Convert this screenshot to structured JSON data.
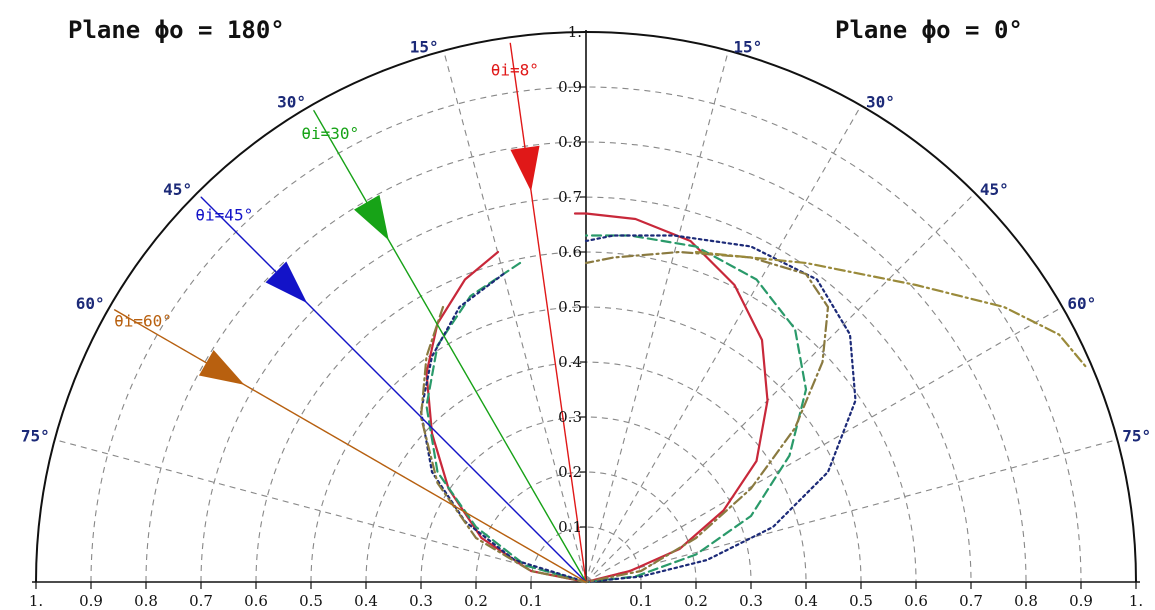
{
  "chart_data": {
    "type": "polar",
    "plane_labels": {
      "left": "Plane ϕo = 180°",
      "right": "Plane ϕo = 0°"
    },
    "radial_ticks": [
      0.1,
      0.2,
      0.3,
      0.4,
      0.5,
      0.6,
      0.7,
      0.8,
      0.9,
      1.0
    ],
    "radial_tick_labels": [
      "0.1",
      "0.2",
      "0.3",
      "0.4",
      "0.5",
      "0.6",
      "0.7",
      "0.8",
      "0.9",
      "1."
    ],
    "rlim": [
      0,
      1
    ],
    "angle_ticks": [
      15,
      30,
      45,
      60,
      75
    ],
    "angle_labels": [
      "15°",
      "30°",
      "45°",
      "60°",
      "75°"
    ],
    "grid": true,
    "incidence_arrows": [
      {
        "label": "θi=8°",
        "angle_deg": 8,
        "color": "#e01818"
      },
      {
        "label": "θi=30°",
        "angle_deg": 30,
        "color": "#17a317"
      },
      {
        "label": "θi=45°",
        "angle_deg": 45,
        "color": "#1313c8"
      },
      {
        "label": "θi=60°",
        "angle_deg": 60,
        "color": "#b8600f"
      }
    ],
    "series": [
      {
        "color": "#c8283a",
        "style": "solid",
        "points": [
          [
            -0.16,
            0.6
          ],
          [
            -0.22,
            0.55
          ],
          [
            -0.27,
            0.47
          ],
          [
            -0.29,
            0.38
          ],
          [
            -0.28,
            0.27
          ],
          [
            -0.25,
            0.17
          ],
          [
            -0.19,
            0.08
          ],
          [
            -0.1,
            0.02
          ],
          [
            0,
            0
          ],
          [
            0.08,
            0.02
          ],
          [
            0.17,
            0.06
          ],
          [
            0.25,
            0.13
          ],
          [
            0.31,
            0.22
          ],
          [
            0.33,
            0.33
          ],
          [
            0.32,
            0.44
          ],
          [
            0.27,
            0.54
          ],
          [
            0.19,
            0.62
          ],
          [
            0.09,
            0.66
          ],
          [
            0,
            0.67
          ],
          [
            -0.02,
            0.67
          ]
        ]
      },
      {
        "color": "#2a9a6a",
        "style": "dashed",
        "points": [
          [
            -0.12,
            0.58
          ],
          [
            -0.21,
            0.52
          ],
          [
            -0.27,
            0.43
          ],
          [
            -0.29,
            0.32
          ],
          [
            -0.27,
            0.2
          ],
          [
            -0.2,
            0.1
          ],
          [
            -0.11,
            0.03
          ],
          [
            0,
            0
          ],
          [
            0.09,
            0.01
          ],
          [
            0.2,
            0.05
          ],
          [
            0.3,
            0.12
          ],
          [
            0.37,
            0.23
          ],
          [
            0.4,
            0.35
          ],
          [
            0.38,
            0.46
          ],
          [
            0.31,
            0.55
          ],
          [
            0.2,
            0.61
          ],
          [
            0.08,
            0.63
          ],
          [
            0,
            0.63
          ]
        ]
      },
      {
        "color": "#1c2a78",
        "style": "dotted",
        "points": [
          [
            -0.15,
            0.56
          ],
          [
            -0.23,
            0.5
          ],
          [
            -0.28,
            0.41
          ],
          [
            -0.3,
            0.31
          ],
          [
            -0.28,
            0.2
          ],
          [
            -0.22,
            0.11
          ],
          [
            -0.13,
            0.04
          ],
          [
            0,
            0
          ],
          [
            0.1,
            0.01
          ],
          [
            0.22,
            0.04
          ],
          [
            0.34,
            0.1
          ],
          [
            0.44,
            0.2
          ],
          [
            0.49,
            0.33
          ],
          [
            0.48,
            0.45
          ],
          [
            0.42,
            0.55
          ],
          [
            0.3,
            0.61
          ],
          [
            0.16,
            0.63
          ],
          [
            0.05,
            0.63
          ],
          [
            0,
            0.62
          ]
        ]
      },
      {
        "color": "#8a7a40",
        "style": "dashdot",
        "points": [
          [
            -0.26,
            0.5
          ],
          [
            -0.29,
            0.41
          ],
          [
            -0.3,
            0.3
          ],
          [
            -0.27,
            0.18
          ],
          [
            -0.2,
            0.08
          ],
          [
            -0.1,
            0.02
          ],
          [
            0,
            0
          ],
          [
            0.1,
            0.02
          ],
          [
            0.2,
            0.08
          ],
          [
            0.3,
            0.17
          ],
          [
            0.38,
            0.28
          ],
          [
            0.43,
            0.4
          ],
          [
            0.44,
            0.5
          ],
          [
            0.4,
            0.56
          ],
          [
            0.3,
            0.59
          ],
          [
            0.17,
            0.6
          ],
          [
            0.05,
            0.59
          ],
          [
            0,
            0.58
          ]
        ]
      },
      {
        "color": "#9a8a3a",
        "style": "dashdot",
        "points": [
          [
            0.2,
            0.6
          ],
          [
            0.4,
            0.58
          ],
          [
            0.6,
            0.54
          ],
          [
            0.76,
            0.5
          ],
          [
            0.86,
            0.45
          ],
          [
            0.91,
            0.39
          ]
        ]
      }
    ]
  }
}
